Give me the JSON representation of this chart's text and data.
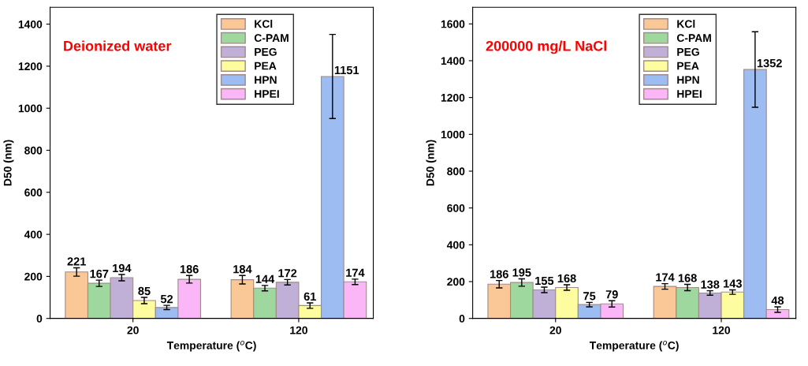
{
  "chart_data": [
    {
      "type": "bar",
      "xlabel": "Temperature ($^{o}$C)",
      "ylabel": "D50 (nm)",
      "categories": [
        "20",
        "120"
      ],
      "ylim": [
        0,
        1480
      ],
      "yticks": [
        0,
        200,
        400,
        600,
        800,
        1000,
        1200,
        1400
      ],
      "grid": false,
      "legend": "top right",
      "data_labels": true,
      "annotations": [
        "Deionized water"
      ],
      "series": [
        {
          "name": "KCl",
          "color": "#f9c896",
          "values": [
            221,
            184
          ],
          "errors": [
            20,
            20
          ]
        },
        {
          "name": "C-PAM",
          "color": "#9fd89f",
          "values": [
            167,
            144
          ],
          "errors": [
            15,
            13
          ]
        },
        {
          "name": "PEG",
          "color": "#c0b0d8",
          "values": [
            194,
            172
          ],
          "errors": [
            15,
            13
          ]
        },
        {
          "name": "PEA",
          "color": "#fdfda0",
          "values": [
            85,
            61
          ],
          "errors": [
            15,
            13
          ]
        },
        {
          "name": "HPN",
          "color": "#9cbcf2",
          "values": [
            52,
            1151
          ],
          "errors": [
            10,
            200
          ]
        },
        {
          "name": "HPEI",
          "color": "#fbb6f8",
          "values": [
            186,
            174
          ],
          "errors": [
            18,
            13
          ]
        }
      ]
    },
    {
      "type": "bar",
      "xlabel": "Temperature ($^{o}$C)",
      "ylabel": "D50 (nm)",
      "categories": [
        "20",
        "120"
      ],
      "ylim": [
        0,
        1690
      ],
      "yticks": [
        0,
        200,
        400,
        600,
        800,
        1000,
        1200,
        1400,
        1600
      ],
      "grid": false,
      "legend": "top right",
      "data_labels": true,
      "annotations": [
        "200000 mg/L NaCl"
      ],
      "series": [
        {
          "name": "KCl",
          "color": "#f9c896",
          "values": [
            186,
            174
          ],
          "errors": [
            20,
            15
          ]
        },
        {
          "name": "C-PAM",
          "color": "#9fd89f",
          "values": [
            195,
            168
          ],
          "errors": [
            20,
            17
          ]
        },
        {
          "name": "PEG",
          "color": "#c0b0d8",
          "values": [
            155,
            138
          ],
          "errors": [
            15,
            12
          ]
        },
        {
          "name": "PEA",
          "color": "#fdfda0",
          "values": [
            168,
            143
          ],
          "errors": [
            15,
            12
          ]
        },
        {
          "name": "HPN",
          "color": "#9cbcf2",
          "values": [
            75,
            1352
          ],
          "errors": [
            12,
            205
          ]
        },
        {
          "name": "HPEI",
          "color": "#fbb6f8",
          "values": [
            79,
            48
          ],
          "errors": [
            17,
            15
          ]
        }
      ]
    }
  ]
}
